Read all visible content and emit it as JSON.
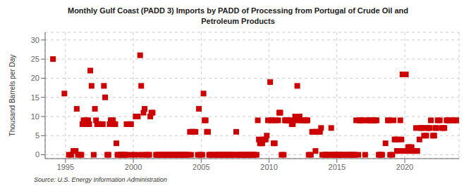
{
  "chart_data": {
    "type": "scatter",
    "title": "Monthly Gulf Coast (PADD 3) Imports by PADD of Processing from Portugal of Crude Oil and\nPetroleum Products",
    "ylabel": "Thousand Barrels per Day",
    "annotations": [
      "Source: U.S. Energy Information Administration"
    ],
    "color": "#cc0000",
    "marker": "square",
    "grid": true,
    "xlim": [
      1993.5,
      2024.0
    ],
    "ylim": [
      -1,
      32
    ],
    "yticks": [
      0,
      5,
      10,
      15,
      20,
      25,
      30
    ],
    "xticks": [
      1995,
      2000,
      2005,
      2010,
      2015,
      2020
    ],
    "x": [
      1994.08,
      1994.92,
      1995.25,
      1995.42,
      1995.58,
      1995.75,
      1995.83,
      1995.92,
      1996.08,
      1996.17,
      1996.25,
      1996.33,
      1996.42,
      1996.5,
      1996.58,
      1996.67,
      1996.75,
      1996.83,
      1996.92,
      1997.08,
      1997.17,
      1997.25,
      1997.33,
      1997.42,
      1997.5,
      1997.58,
      1997.67,
      1997.75,
      1997.83,
      1997.92,
      1998.08,
      1998.17,
      1998.25,
      1998.33,
      1998.42,
      1998.5,
      1998.58,
      1998.67,
      1998.75,
      1998.83,
      1998.92,
      1999.08,
      1999.17,
      1999.25,
      1999.33,
      1999.42,
      1999.5,
      1999.58,
      1999.67,
      1999.75,
      1999.83,
      1999.92,
      2000.08,
      2000.17,
      2000.25,
      2000.33,
      2000.42,
      2000.5,
      2000.58,
      2000.67,
      2000.75,
      2000.83,
      2000.92,
      2001.08,
      2001.17,
      2001.25,
      2001.33,
      2001.42,
      2001.67,
      2001.75,
      2001.83,
      2001.92,
      2002.08,
      2002.17,
      2002.25,
      2002.33,
      2002.42,
      2002.5,
      2002.58,
      2002.67,
      2002.75,
      2002.83,
      2002.92,
      2003.08,
      2003.17,
      2003.25,
      2003.33,
      2003.42,
      2003.5,
      2003.58,
      2003.67,
      2003.75,
      2003.83,
      2003.92,
      2004.08,
      2004.17,
      2004.25,
      2004.33,
      2004.42,
      2004.58,
      2004.75,
      2004.83,
      2004.92,
      2005.08,
      2005.17,
      2005.25,
      2005.33,
      2005.42,
      2005.5,
      2005.58,
      2005.67,
      2005.75,
      2005.92,
      2006.08,
      2006.17,
      2006.25,
      2006.33,
      2006.42,
      2006.5,
      2006.58,
      2006.67,
      2006.75,
      2006.83,
      2006.92,
      2007.08,
      2007.17,
      2007.25,
      2007.33,
      2007.42,
      2007.58,
      2007.67,
      2007.75,
      2007.83,
      2007.92,
      2008.08,
      2008.17,
      2008.25,
      2008.33,
      2008.42,
      2008.5,
      2008.58,
      2008.67,
      2008.75,
      2008.83,
      2008.92,
      2009.08,
      2009.17,
      2009.25,
      2009.33,
      2009.42,
      2009.5,
      2009.58,
      2009.67,
      2009.75,
      2009.83,
      2009.92,
      2010.08,
      2010.17,
      2010.25,
      2010.33,
      2010.42,
      2010.5,
      2010.67,
      2010.75,
      2010.83,
      2010.92,
      2011.08,
      2011.17,
      2011.25,
      2011.33,
      2011.42,
      2011.5,
      2011.67,
      2011.75,
      2011.83,
      2011.92,
      2012.08,
      2012.17,
      2012.25,
      2012.33,
      2012.5,
      2012.67,
      2012.75,
      2012.83,
      2012.92,
      2013.08,
      2013.17,
      2013.25,
      2013.42,
      2013.5,
      2013.58,
      2013.67,
      2013.75,
      2013.83,
      2013.92,
      2014.08,
      2014.17,
      2014.25,
      2014.33,
      2014.42,
      2014.58,
      2014.67,
      2014.75,
      2014.83,
      2014.92,
      2015.08,
      2015.17,
      2015.25,
      2015.33,
      2015.42,
      2015.67,
      2015.75,
      2015.83,
      2015.92,
      2016.08,
      2016.17,
      2016.25,
      2016.33,
      2016.42,
      2016.58,
      2016.67,
      2016.75,
      2016.83,
      2016.92,
      2017.08,
      2017.25,
      2017.33,
      2017.42,
      2017.58,
      2017.67,
      2017.75,
      2017.83,
      2017.92,
      2018.08,
      2018.17,
      2018.25,
      2018.33,
      2018.58,
      2018.75,
      2018.83,
      2018.92,
      2019.08,
      2019.17,
      2019.25,
      2019.33,
      2019.42,
      2019.5,
      2019.58,
      2019.67,
      2019.75,
      2019.83,
      2019.92,
      2020.08,
      2020.17,
      2020.25,
      2020.33,
      2020.42,
      2020.5,
      2020.58,
      2020.67,
      2020.75,
      2020.83,
      2020.92,
      2021.08,
      2021.17,
      2021.25,
      2021.33,
      2021.42,
      2021.58,
      2021.67,
      2021.75,
      2021.83,
      2021.92,
      2022.08,
      2022.17,
      2022.25,
      2022.33,
      2022.42,
      2022.58,
      2022.75,
      2022.83,
      2022.92,
      2023.08,
      2023.17,
      2023.25,
      2023.42,
      2023.58,
      2023.75,
      2023.83
    ],
    "values": [
      25,
      16,
      0,
      0,
      1,
      1,
      12,
      0,
      0,
      0,
      8,
      9,
      9,
      8,
      9,
      9,
      8,
      22,
      18,
      0,
      12,
      9,
      8,
      8,
      8,
      8,
      8,
      8,
      18,
      15,
      0,
      0,
      8,
      9,
      9,
      9,
      8,
      8,
      3,
      0,
      0,
      0,
      0,
      0,
      0,
      0,
      8,
      0,
      8,
      8,
      8,
      0,
      0,
      10,
      10,
      10,
      0,
      26,
      18,
      0,
      11,
      12,
      0,
      0,
      0,
      10,
      11,
      11,
      0,
      0,
      0,
      0,
      0,
      0,
      0,
      0,
      0,
      0,
      0,
      0,
      0,
      0,
      0,
      0,
      0,
      0,
      0,
      0,
      0,
      0,
      0,
      0,
      0,
      0,
      0,
      6,
      0,
      6,
      6,
      6,
      0,
      12,
      0,
      0,
      16,
      9,
      9,
      6,
      6,
      0,
      0,
      0,
      0,
      0,
      0,
      0,
      0,
      0,
      0,
      0,
      0,
      0,
      0,
      0,
      0,
      0,
      0,
      0,
      0,
      6,
      0,
      0,
      0,
      0,
      0,
      0,
      0,
      0,
      0,
      0,
      0,
      0,
      0,
      0,
      0,
      0,
      9,
      4,
      3,
      3,
      3,
      4,
      4,
      4,
      5,
      9,
      19,
      9,
      9,
      3,
      3,
      9,
      9,
      11,
      11,
      0,
      0,
      9,
      9,
      9,
      9,
      9,
      8,
      8,
      9,
      10,
      18,
      9,
      10,
      9,
      9,
      9,
      9,
      9,
      0,
      0,
      6,
      6,
      1,
      6,
      6,
      6,
      6,
      7,
      0,
      0,
      0,
      0,
      0,
      0,
      7,
      0,
      0,
      0,
      0,
      0,
      0,
      0,
      0,
      0,
      0,
      0,
      0,
      0,
      0,
      0,
      0,
      0,
      9,
      0,
      9,
      9,
      9,
      9,
      0,
      9,
      9,
      9,
      9,
      9,
      9,
      9,
      9,
      0,
      0,
      0,
      0,
      3,
      9,
      9,
      0,
      0,
      9,
      4,
      4,
      1,
      4,
      1,
      9,
      4,
      21,
      1,
      21,
      1,
      2,
      2,
      1,
      2,
      1,
      1,
      1,
      7,
      1,
      4,
      7,
      7,
      7,
      5,
      5,
      7,
      7,
      7,
      9,
      5,
      5,
      7,
      7,
      9,
      9,
      7,
      7,
      7,
      9,
      9,
      9,
      9,
      9,
      9,
      9
    ]
  }
}
